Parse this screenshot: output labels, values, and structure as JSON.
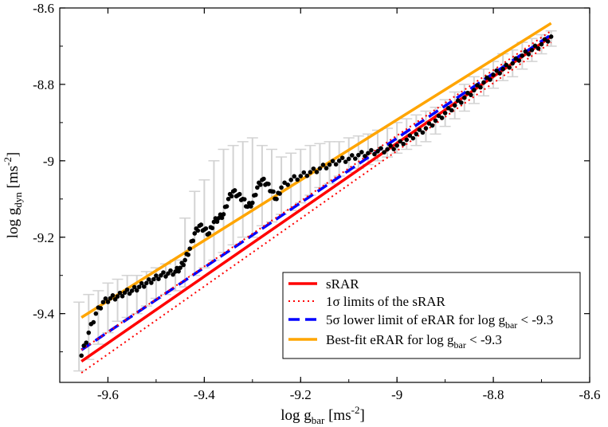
{
  "chart_data": {
    "type": "scatter",
    "xlabel": {
      "main": "log g",
      "sub": "bar",
      "unit_pre": " [ms",
      "unit_sup": "-2",
      "unit_post": "]"
    },
    "ylabel": {
      "main": "log g",
      "sub": "dyn",
      "unit_pre": " [ms",
      "unit_sup": "-2",
      "unit_post": "]"
    },
    "xlim": [
      -9.7,
      -8.6
    ],
    "ylim": [
      -9.58,
      -8.6
    ],
    "x_ticks": [
      {
        "value": -9.6,
        "label": "-9.6"
      },
      {
        "value": -9.4,
        "label": "-9.4"
      },
      {
        "value": -9.2,
        "label": "-9.2"
      },
      {
        "value": -9.0,
        "label": "-9"
      },
      {
        "value": -8.8,
        "label": "-8.8"
      },
      {
        "value": -8.6,
        "label": "-8.6"
      }
    ],
    "y_ticks": [
      {
        "value": -9.4,
        "label": "-9.4"
      },
      {
        "value": -9.2,
        "label": "-9.2"
      },
      {
        "value": -9.0,
        "label": "-9"
      },
      {
        "value": -8.8,
        "label": "-8.8"
      },
      {
        "value": -8.6,
        "label": "-8.6"
      }
    ],
    "data_points": {
      "x": [
        -9.655,
        -9.64,
        -9.625,
        -9.61,
        -9.595,
        -9.58,
        -9.565,
        -9.55,
        -9.535,
        -9.52,
        -9.505,
        -9.49,
        -9.475,
        -9.46,
        -9.45,
        -9.44,
        -9.43,
        -9.42,
        -9.41,
        -9.4,
        -9.39,
        -9.38,
        -9.37,
        -9.36,
        -9.35,
        -9.34,
        -9.33,
        -9.32,
        -9.31,
        -9.3,
        -9.29,
        -9.28,
        -9.27,
        -9.26,
        -9.25,
        -9.24,
        -9.22,
        -9.2,
        -9.18,
        -9.16,
        -9.14,
        -9.12,
        -9.1,
        -9.08,
        -9.06,
        -9.04,
        -9.02,
        -9.0,
        -8.98,
        -8.96,
        -8.94,
        -8.92,
        -8.9,
        -8.88,
        -8.86,
        -8.84,
        -8.82,
        -8.8,
        -8.78,
        -8.76,
        -8.74,
        -8.72,
        -8.7,
        -8.68
      ],
      "y": [
        -9.51,
        -9.45,
        -9.4,
        -9.37,
        -9.36,
        -9.355,
        -9.345,
        -9.34,
        -9.33,
        -9.32,
        -9.31,
        -9.3,
        -9.295,
        -9.29,
        -9.28,
        -9.26,
        -9.23,
        -9.19,
        -9.17,
        -9.18,
        -9.19,
        -9.16,
        -9.15,
        -9.14,
        -9.1,
        -9.08,
        -9.09,
        -9.1,
        -9.12,
        -9.11,
        -9.07,
        -9.05,
        -9.06,
        -9.08,
        -9.1,
        -9.07,
        -9.05,
        -9.04,
        -9.03,
        -9.02,
        -9.01,
        -9.0,
        -8.995,
        -8.985,
        -8.98,
        -8.975,
        -8.97,
        -8.96,
        -8.945,
        -8.93,
        -8.915,
        -8.895,
        -8.875,
        -8.855,
        -8.835,
        -8.815,
        -8.795,
        -8.775,
        -8.76,
        -8.745,
        -8.725,
        -8.71,
        -8.695,
        -8.675
      ]
    },
    "error_bars": {
      "x": [
        -9.66,
        -9.64,
        -9.62,
        -9.6,
        -9.58,
        -9.56,
        -9.54,
        -9.52,
        -9.5,
        -9.48,
        -9.46,
        -9.44,
        -9.42,
        -9.4,
        -9.38,
        -9.36,
        -9.34,
        -9.32,
        -9.3,
        -9.28,
        -9.26,
        -9.24,
        -9.22,
        -9.2,
        -9.18,
        -9.16,
        -9.14,
        -9.12,
        -9.1,
        -9.08,
        -9.06,
        -9.04,
        -9.02,
        -9.0,
        -8.98,
        -8.96,
        -8.94,
        -8.92,
        -8.9,
        -8.88,
        -8.86,
        -8.84,
        -8.82,
        -8.8,
        -8.78,
        -8.76,
        -8.74,
        -8.72,
        -8.7,
        -8.68
      ],
      "low": [
        -9.55,
        -9.52,
        -9.48,
        -9.45,
        -9.42,
        -9.41,
        -9.4,
        -9.38,
        -9.36,
        -9.35,
        -9.34,
        -9.33,
        -9.3,
        -9.28,
        -9.26,
        -9.24,
        -9.22,
        -9.2,
        -9.2,
        -9.17,
        -9.16,
        -9.14,
        -9.13,
        -9.11,
        -9.09,
        -9.07,
        -9.06,
        -9.04,
        -9.03,
        -9.02,
        -9.01,
        -9.0,
        -8.99,
        -8.98,
        -8.97,
        -8.96,
        -8.95,
        -8.93,
        -8.91,
        -8.89,
        -8.87,
        -8.85,
        -8.83,
        -8.81,
        -8.79,
        -8.78,
        -8.76,
        -8.74,
        -8.72,
        -8.7
      ],
      "high": [
        -9.37,
        -9.35,
        -9.34,
        -9.32,
        -9.31,
        -9.3,
        -9.3,
        -9.29,
        -9.28,
        -9.27,
        -9.26,
        -9.15,
        -9.08,
        -9.05,
        -9.0,
        -8.97,
        -8.96,
        -8.95,
        -8.94,
        -8.96,
        -8.97,
        -8.99,
        -8.98,
        -8.97,
        -8.96,
        -8.955,
        -8.95,
        -8.95,
        -8.94,
        -8.935,
        -8.93,
        -8.92,
        -8.915,
        -8.9,
        -8.89,
        -8.88,
        -8.87,
        -8.86,
        -8.84,
        -8.82,
        -8.8,
        -8.78,
        -8.76,
        -8.74,
        -8.72,
        -8.71,
        -8.69,
        -8.68,
        -8.67,
        -8.66
      ]
    },
    "series": [
      {
        "name": "sRAR",
        "style": "solid",
        "color": "#ff0000",
        "x": [
          -9.655,
          -8.68
        ],
        "y": [
          -9.525,
          -8.675
        ]
      },
      {
        "name": "1σ limits of the sRAR",
        "style": "dotted",
        "color": "#ff0000",
        "x": [
          -9.655,
          -8.68
        ],
        "y": [
          -9.555,
          -8.69
        ]
      },
      {
        "name": "5σ lower limit of eRAR for log g_bar < -9.3",
        "style": "dashed",
        "color": "#0000ff",
        "x": [
          -9.655,
          -8.68
        ],
        "y": [
          -9.495,
          -8.67
        ]
      },
      {
        "name": "Best-fit eRAR for log g_bar < -9.3",
        "style": "solid",
        "color": "#ffa500",
        "x": [
          -9.655,
          -8.68
        ],
        "y": [
          -9.41,
          -8.64
        ]
      }
    ],
    "legend": {
      "placement": "bottom-right",
      "entries": [
        {
          "key": "sRAR",
          "text": "sRAR"
        },
        {
          "key": "one_sigma",
          "text": "1σ limits of the sRAR"
        },
        {
          "key": "five_sigma",
          "text_pre": "5σ lower limit of eRAR for log g",
          "sub": "bar",
          "text_post": " < -9.3"
        },
        {
          "key": "best_fit",
          "text_pre": "Best-fit eRAR for log g",
          "sub": "bar",
          "text_post": " < -9.3"
        }
      ]
    },
    "colors": {
      "point": "#000000",
      "error_bar": "#d3d3d3",
      "axes": "#000000",
      "background": "#ffffff"
    }
  }
}
